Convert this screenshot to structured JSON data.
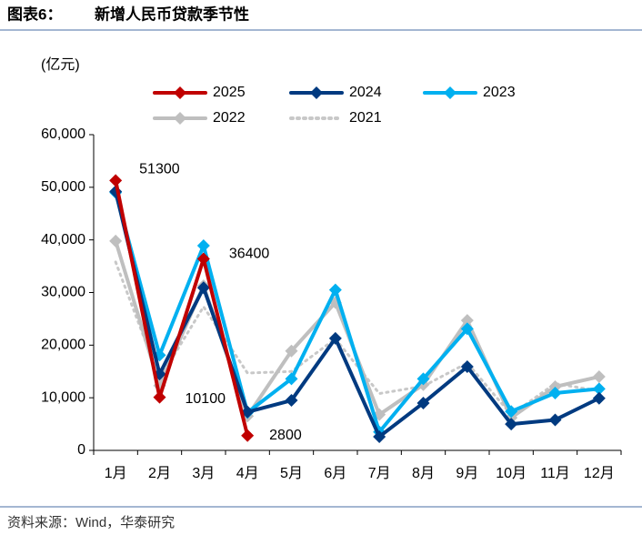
{
  "chart_data": {
    "type": "line",
    "figure_label": "图表6：",
    "title": "新增人民币贷款季节性",
    "unit": "(亿元)",
    "source": "资料来源：Wind，华泰研究",
    "categories": [
      "1月",
      "2月",
      "3月",
      "4月",
      "5月",
      "6月",
      "7月",
      "8月",
      "9月",
      "10月",
      "11月",
      "12月"
    ],
    "ylim": [
      0,
      60000
    ],
    "yticks": [
      0,
      {
        "value": 10000,
        "label": "10,000"
      },
      {
        "value": 20000,
        "label": "20,000"
      },
      {
        "value": 30000,
        "label": "30,000"
      },
      {
        "value": 40000,
        "label": "40,000"
      },
      {
        "value": 50000,
        "label": "50,000"
      },
      {
        "value": 60000,
        "label": "60,000"
      }
    ],
    "series": [
      {
        "name": "2025",
        "color": "#c00000",
        "values": [
          51300,
          10100,
          36400,
          2800,
          null,
          null,
          null,
          null,
          null,
          null,
          null,
          null
        ],
        "data_labels": true
      },
      {
        "name": "2024",
        "color": "#003a80",
        "values": [
          49200,
          14500,
          30900,
          7300,
          9500,
          21300,
          2600,
          9000,
          15900,
          5000,
          5800,
          9900
        ]
      },
      {
        "name": "2023",
        "color": "#00b0f0",
        "values": [
          49000,
          18100,
          38900,
          7200,
          13600,
          30500,
          3500,
          13600,
          23100,
          7400,
          10900,
          11700
        ]
      },
      {
        "name": "2022",
        "color": "#bfbfbf",
        "values": [
          39800,
          12300,
          31300,
          6500,
          18900,
          28100,
          6800,
          12500,
          24700,
          6200,
          12100,
          14000
        ]
      },
      {
        "name": "2021",
        "color": "#c8c8c8",
        "line_style": "dotted",
        "markers": false,
        "values": [
          35800,
          13600,
          27300,
          14700,
          15000,
          21200,
          10800,
          12200,
          16600,
          6800,
          12700,
          11300
        ]
      }
    ]
  }
}
